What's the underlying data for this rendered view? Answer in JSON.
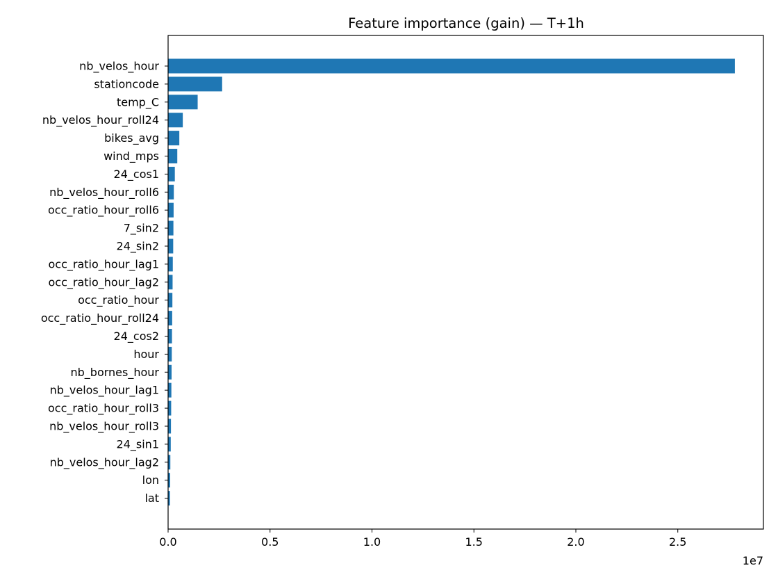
{
  "chart_data": {
    "type": "bar",
    "orientation": "horizontal",
    "title": "Feature importance (gain) — T+1h",
    "xlabel": "",
    "ylabel": "",
    "x_offset_label": "1e7",
    "x_ticks": [
      "0.0",
      "0.5",
      "1.0",
      "1.5",
      "2.0",
      "2.5"
    ],
    "x_tick_values": [
      0.0,
      0.5,
      1.0,
      1.5,
      2.0,
      2.5
    ],
    "xlim": [
      0,
      2.92
    ],
    "grid": false,
    "bar_color": "#1f77b4",
    "categories": [
      "nb_velos_hour",
      "stationcode",
      "temp_C",
      "nb_velos_hour_roll24",
      "bikes_avg",
      "wind_mps",
      "24_cos1",
      "nb_velos_hour_roll6",
      "occ_ratio_hour_roll6",
      "7_sin2",
      "24_sin2",
      "occ_ratio_hour_lag1",
      "occ_ratio_hour_lag2",
      "occ_ratio_hour",
      "occ_ratio_hour_roll24",
      "24_cos2",
      "hour",
      "nb_bornes_hour",
      "nb_velos_hour_lag1",
      "occ_ratio_hour_roll3",
      "nb_velos_hour_roll3",
      "24_sin1",
      "nb_velos_hour_lag2",
      "lon",
      "lat"
    ],
    "values": [
      2.78,
      0.265,
      0.145,
      0.072,
      0.055,
      0.045,
      0.033,
      0.028,
      0.027,
      0.026,
      0.025,
      0.023,
      0.022,
      0.021,
      0.02,
      0.019,
      0.018,
      0.017,
      0.016,
      0.015,
      0.014,
      0.013,
      0.011,
      0.01,
      0.009
    ]
  }
}
